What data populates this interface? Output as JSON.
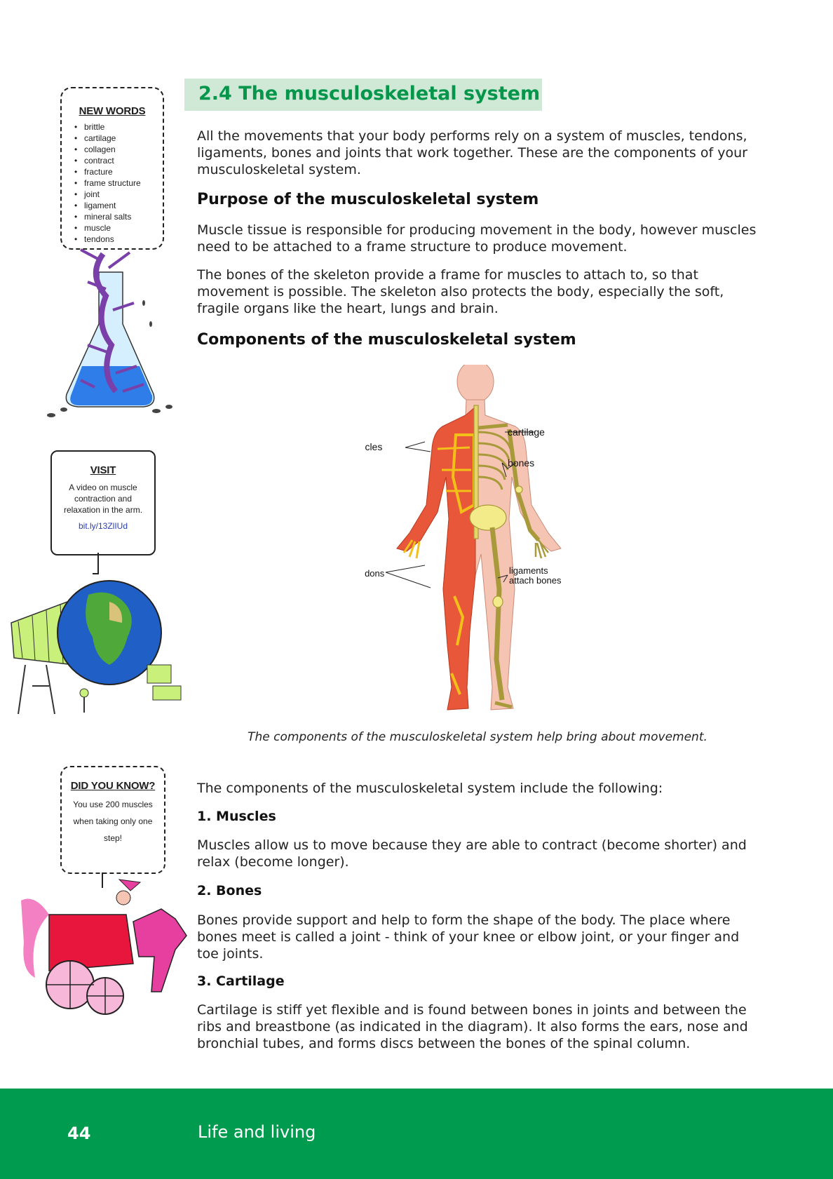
{
  "section": {
    "title": "2.4  The musculoskeletal system"
  },
  "intro": "All the movements that your body performs rely on a system of muscles, tendons, ligaments, bones and joints that work together. These are the components of your musculoskeletal system.",
  "purpose": {
    "heading": "Purpose of the musculoskeletal system",
    "p1": "Muscle tissue is responsible for producing movement in the body, however muscles need to be attached to a frame structure to produce movement.",
    "p2": "The bones of the skeleton provide a frame for muscles to attach to, so that movement is possible. The skeleton also protects the body, especially the soft, fragile organs like the heart, lungs and brain."
  },
  "components": {
    "heading": "Components of the musculoskeletal system",
    "caption": "The components of the musculoskeletal system help bring about movement.",
    "intro": "The components of the musculoskeletal system include the following:",
    "muscles_heading": "1. Muscles",
    "muscles_text": "Muscles allow us to move because they are able to contract (become shorter) and relax (become longer).",
    "bones_heading": "2. Bones",
    "bones_text": "Bones provide support and help to form the shape of the body. The place where bones meet is called a joint - think of your knee or elbow joint, or your finger and toe joints.",
    "cartilage_heading": "3. Cartilage",
    "cartilage_text": "Cartilage is stiff yet flexible and is found between bones in joints and between the ribs and breastbone (as indicated in the diagram). It also forms the ears, nose and bronchial tubes, and forms discs between the bones of the spinal column."
  },
  "diagram_labels": {
    "muscles": "muscles",
    "cartilage": "cartilage",
    "bones": "bones",
    "tendons": "tendons",
    "ligaments_line1": "ligaments",
    "ligaments_line2": "attach bones"
  },
  "new_words": {
    "title": "NEW WORDS",
    "items": [
      "brittle",
      "cartilage",
      "collagen",
      "contract",
      "fracture",
      "frame structure",
      "joint",
      "ligament",
      "mineral salts",
      "muscle",
      "tendons"
    ]
  },
  "visit": {
    "title": "VISIT",
    "text": "A video on muscle contraction and relaxation in the arm.",
    "link": "bit.ly/13ZlIUd"
  },
  "did_you_know": {
    "title": "DID YOU KNOW?",
    "text": "You use 200 muscles when taking only one step!"
  },
  "footer": {
    "page_number": "44",
    "title": "Life and living"
  },
  "colors": {
    "green": "#009b4e",
    "heading_bg": "#cfe9d6",
    "heading_text": "#06964b",
    "muscle": "#e8573a",
    "bone": "#f3ea8a",
    "skin": "#f6c4b2"
  }
}
